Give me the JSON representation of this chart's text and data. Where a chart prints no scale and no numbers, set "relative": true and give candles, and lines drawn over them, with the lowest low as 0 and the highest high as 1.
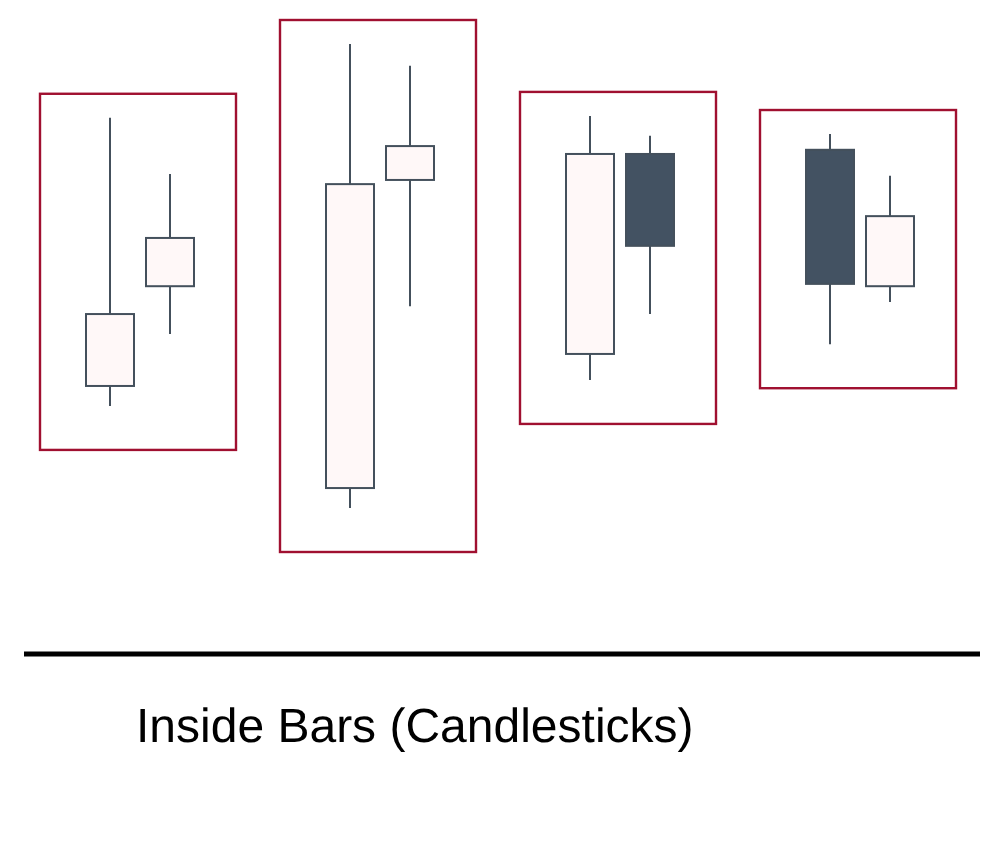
{
  "chart_data": {
    "type": "candlestick",
    "title": "Inside Bars (Candlesticks)",
    "relative": true,
    "categories": [
      null,
      null,
      null,
      null,
      null,
      null,
      null,
      null,
      null,
      null,
      null,
      null,
      null,
      null
    ],
    "ohlc": [
      [
        0.263,
        0.841,
        0.22,
        0.418
      ],
      [
        0.478,
        0.72,
        0.375,
        0.582
      ],
      null,
      null,
      [
        0.043,
        1,
        0,
        0.698
      ],
      [
        0.707,
        0.953,
        0.435,
        0.78
      ],
      null,
      null,
      [
        0.332,
        0.845,
        0.276,
        0.763
      ],
      [
        0.763,
        0.802,
        0.418,
        0.565
      ],
      null,
      null,
      [
        0.772,
        0.806,
        0.353,
        0.483
      ],
      [
        0.478,
        0.716,
        0.444,
        0.629
      ]
    ],
    "colors": [
      "#fff8f8",
      "#fff8f8",
      null,
      null,
      "#fff8f8",
      "#fff8f8",
      null,
      null,
      "#fff8f8",
      "#435262",
      null,
      null,
      "#435262",
      "#fff8f8"
    ]
  }
}
